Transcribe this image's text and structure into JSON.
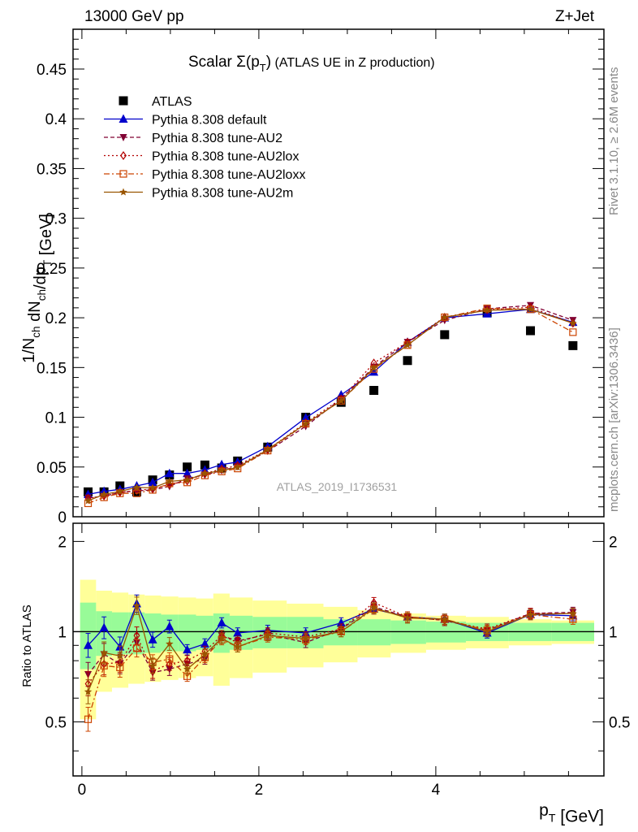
{
  "header": {
    "left": "13000 GeV pp",
    "right": "Z+Jet"
  },
  "side": {
    "rivet": "Rivet 3.1.10, ≥ 2.6M events",
    "mcplots": "mcplots.cern.ch [arXiv:1306.3436]"
  },
  "watermark": "ATLAS_2019_I1736531",
  "title": {
    "main": "Scalar Σ(p",
    "sub": "T",
    "close": ")",
    "rest": " (ATLAS UE in Z production)"
  },
  "axes": {
    "ylabel_top": "1/N_ch dN_ch/dp_T [GeV]",
    "ylabel_bottom": "Ratio to ATLAS",
    "xlabel": "p_T [GeV]"
  },
  "colors": {
    "ATLAS": "#000000",
    "default": "#0000cc",
    "AU2": "#800033",
    "AU2lox": "#b30000",
    "AU2loxx": "#cc4400",
    "AU2m": "#995500",
    "band_inner": "#98fb98",
    "band_outer": "#ffff99"
  },
  "chart_data": {
    "type": "scatter",
    "x_unit": "GeV",
    "xlim": [
      -0.1,
      5.9
    ],
    "ylim_top": [
      0,
      0.49
    ],
    "ylim_bottom": [
      0.33,
      2.3
    ],
    "x_ticks_labeled": [
      0,
      2,
      4
    ],
    "y_ticks_top": [
      "0",
      "0.05",
      "0.1",
      "0.15",
      "0.2",
      "0.25",
      "0.3",
      "0.35",
      "0.4",
      "0.45"
    ],
    "y_ticks_bottom": [
      "0.5",
      "1",
      "2"
    ],
    "x": [
      0.07,
      0.25,
      0.43,
      0.62,
      0.8,
      0.99,
      1.19,
      1.39,
      1.58,
      1.76,
      2.1,
      2.53,
      2.93,
      3.3,
      3.68,
      4.1,
      4.58,
      5.07,
      5.55
    ],
    "atlas_values": [
      0.025,
      0.025,
      0.031,
      0.025,
      0.037,
      0.042,
      0.05,
      0.052,
      0.049,
      0.056,
      0.07,
      0.1,
      0.115,
      0.127,
      0.157,
      0.183,
      0.205,
      0.187,
      0.172
    ],
    "band_inner_halfwidth": [
      0.25,
      0.17,
      0.16,
      0.16,
      0.15,
      0.14,
      0.14,
      0.13,
      0.15,
      0.13,
      0.12,
      0.12,
      0.1,
      0.1,
      0.09,
      0.08,
      0.07,
      0.07,
      0.07
    ],
    "band_outer_halfwidth": [
      0.49,
      0.37,
      0.35,
      0.33,
      0.32,
      0.31,
      0.3,
      0.29,
      0.34,
      0.3,
      0.27,
      0.24,
      0.21,
      0.18,
      0.15,
      0.13,
      0.12,
      0.1,
      0.09
    ],
    "series": [
      {
        "name": "ATLAS",
        "key": "ATLAS",
        "marker": "square",
        "line": "none",
        "values": [
          0.025,
          0.025,
          0.031,
          0.025,
          0.037,
          0.042,
          0.05,
          0.052,
          0.049,
          0.056,
          0.07,
          0.1,
          0.115,
          0.127,
          0.157,
          0.183,
          0.205,
          0.187,
          0.172
        ]
      },
      {
        "name": "Pythia 8.308 default",
        "key": "default",
        "marker": "triangle-up",
        "line": "solid",
        "values": [
          0.0225,
          0.0255,
          0.0275,
          0.031,
          0.0345,
          0.0435,
          0.0435,
          0.047,
          0.0525,
          0.055,
          0.0705,
          0.0995,
          0.1225,
          0.1455,
          0.1755,
          0.2,
          0.204,
          0.2085,
          0.1955
        ],
        "ratio": [
          0.9,
          1.03,
          0.89,
          1.24,
          0.94,
          1.04,
          0.87,
          0.91,
          1.07,
          0.99,
          1.01,
          0.99,
          1.07,
          1.19,
          1.12,
          1.1,
          0.99,
          1.14,
          1.13
        ]
      },
      {
        "name": "Pythia 8.308 tune-AU2",
        "key": "AU2",
        "marker": "triangle-down",
        "line": "dashed",
        "values": [
          0.019,
          0.0205,
          0.0245,
          0.026,
          0.027,
          0.0305,
          0.0385,
          0.042,
          0.0465,
          0.0505,
          0.066,
          0.091,
          0.1185,
          0.1505,
          0.1755,
          0.1975,
          0.209,
          0.2125,
          0.1975
        ],
        "ratio": [
          0.72,
          0.84,
          0.78,
          0.92,
          0.73,
          0.75,
          0.78,
          0.81,
          0.97,
          0.93,
          0.98,
          0.92,
          1.02,
          1.21,
          1.12,
          1.09,
          1.01,
          1.15,
          1.16
        ]
      },
      {
        "name": "Pythia 8.308 tune-AU2lox",
        "key": "AU2lox",
        "marker": "diamond-open",
        "line": "dotted",
        "values": [
          0.0185,
          0.021,
          0.0245,
          0.0265,
          0.028,
          0.0325,
          0.036,
          0.0435,
          0.048,
          0.0515,
          0.0675,
          0.0945,
          0.1185,
          0.1545,
          0.1755,
          0.2005,
          0.208,
          0.2105,
          0.1945
        ],
        "ratio": [
          0.67,
          0.78,
          0.79,
          0.97,
          0.74,
          0.78,
          0.8,
          0.86,
          0.97,
          0.92,
          0.99,
          0.96,
          1.02,
          1.25,
          1.12,
          1.09,
          1.02,
          1.15,
          1.15
        ]
      },
      {
        "name": "Pythia 8.308 tune-AU2loxx",
        "key": "AU2loxx",
        "marker": "square-open",
        "line": "dashdot",
        "values": [
          0.0135,
          0.0195,
          0.0235,
          0.0235,
          0.027,
          0.0335,
          0.0345,
          0.0415,
          0.0455,
          0.0485,
          0.0665,
          0.0935,
          0.1165,
          0.1485,
          0.1725,
          0.2005,
          0.2095,
          0.2085,
          0.1855
        ],
        "ratio": [
          0.51,
          0.77,
          0.76,
          0.88,
          0.79,
          0.81,
          0.71,
          0.82,
          0.94,
          0.89,
          0.96,
          0.94,
          1.0,
          1.19,
          1.12,
          1.1,
          1.01,
          1.14,
          1.1
        ]
      },
      {
        "name": "Pythia 8.308 tune-AU2m",
        "key": "AU2m",
        "marker": "star",
        "line": "solid",
        "values": [
          0.016,
          0.0225,
          0.0255,
          0.0295,
          0.029,
          0.0355,
          0.037,
          0.0435,
          0.0465,
          0.0495,
          0.0675,
          0.0935,
          0.1165,
          0.1495,
          0.1725,
          0.2005,
          0.2075,
          0.2085,
          0.1945
        ],
        "ratio": [
          0.63,
          0.85,
          0.83,
          1.22,
          0.77,
          0.91,
          0.75,
          0.84,
          0.95,
          0.89,
          0.97,
          0.95,
          1.0,
          1.2,
          1.11,
          1.1,
          1.0,
          1.14,
          1.15
        ]
      }
    ]
  }
}
